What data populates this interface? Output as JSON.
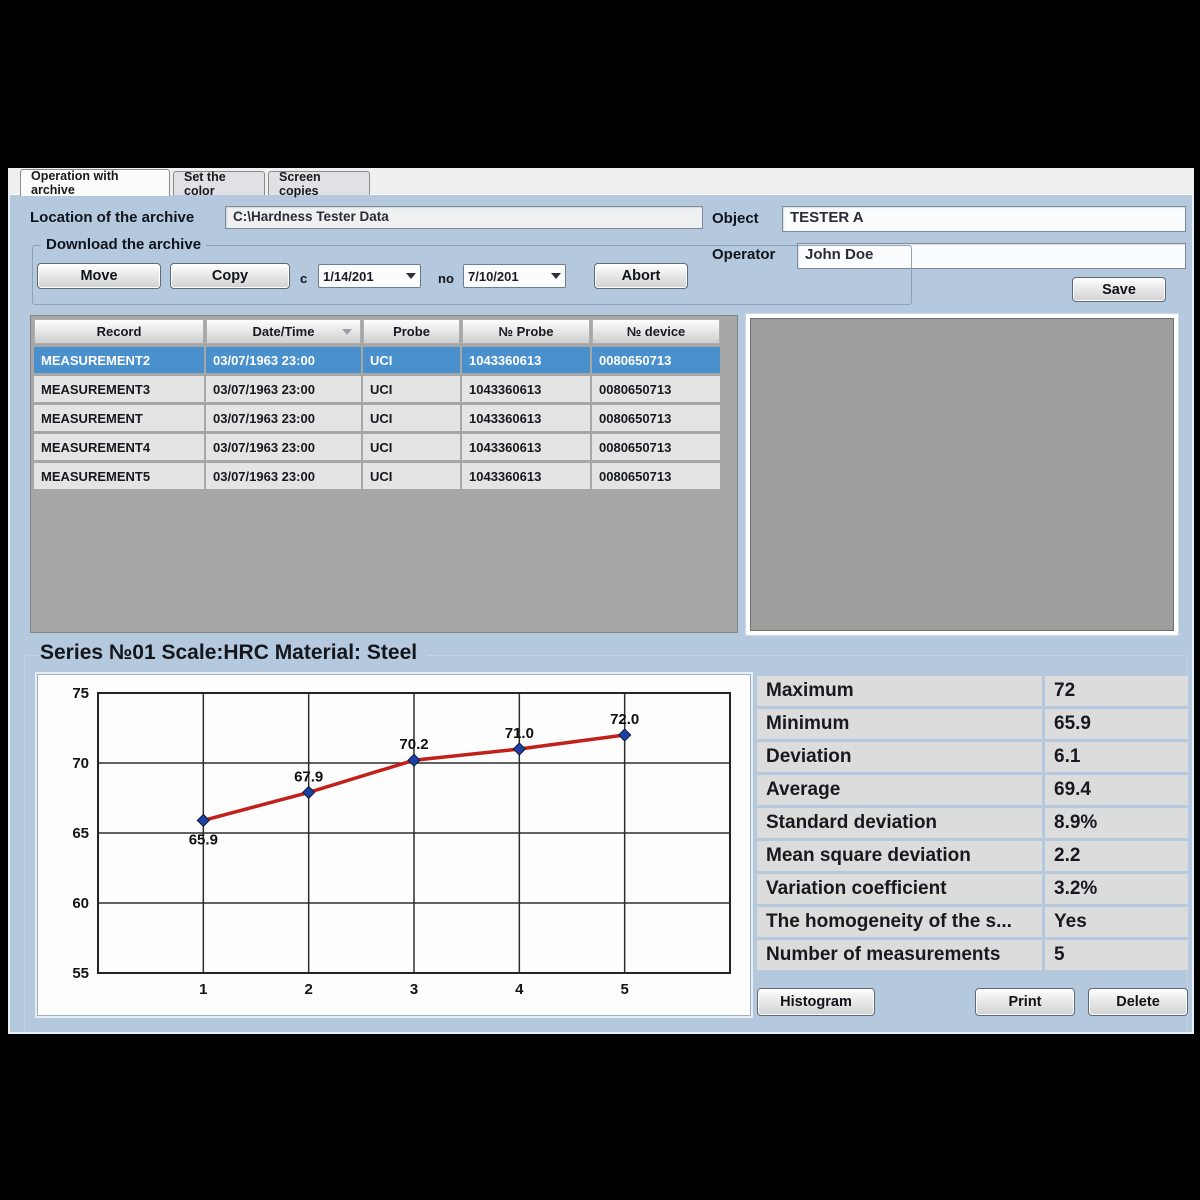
{
  "tabs": [
    {
      "label": "Operation with archive",
      "active": true
    },
    {
      "label": "Set the color",
      "active": false
    },
    {
      "label": "Screen copies",
      "active": false
    }
  ],
  "archive": {
    "location_label": "Location of the archive",
    "location_value": "C:\\Hardness Tester Data",
    "group_label": "Download the archive",
    "move_label": "Move",
    "copy_label": "Copy",
    "from_label": "c",
    "date_from": "1/14/201",
    "to_label": "no",
    "date_to": "7/10/201",
    "abort_label": "Abort"
  },
  "identity": {
    "object_label": "Object",
    "object_value": "TESTER A",
    "operator_label": "Operator",
    "operator_value": "John Doe",
    "save_label": "Save"
  },
  "records_table": {
    "columns": [
      "Record",
      "Date/Time",
      "Probe",
      "№ Probe",
      "№ device"
    ],
    "selected_index": 0,
    "rows": [
      [
        "MEASUREMENT2",
        "03/07/1963 23:00",
        "UCI",
        "1043360613",
        "0080650713"
      ],
      [
        "MEASUREMENT3",
        "03/07/1963 23:00",
        "UCI",
        "1043360613",
        "0080650713"
      ],
      [
        "MEASUREMENT",
        "03/07/1963 23:00",
        "UCI",
        "1043360613",
        "0080650713"
      ],
      [
        "MEASUREMENT4",
        "03/07/1963 23:00",
        "UCI",
        "1043360613",
        "0080650713"
      ],
      [
        "MEASUREMENT5",
        "03/07/1963 23:00",
        "UCI",
        "1043360613",
        "0080650713"
      ]
    ]
  },
  "series": {
    "title": "Series №01 Scale:HRC Material: Steel"
  },
  "chart_data": {
    "type": "line",
    "x": [
      1,
      2,
      3,
      4,
      5
    ],
    "values": [
      65.9,
      67.9,
      70.2,
      71.0,
      72.0
    ],
    "point_labels": [
      "65.9",
      "67.9",
      "70.2",
      "71.0",
      "72.0"
    ],
    "xlim": [
      0,
      6
    ],
    "ylim": [
      55,
      75
    ],
    "xticks": [
      1,
      2,
      3,
      4,
      5
    ],
    "yticks": [
      55,
      60,
      65,
      70,
      75
    ],
    "grid": true,
    "title": "",
    "xlabel": "",
    "ylabel": "",
    "line_color": "#c2201a",
    "marker_color": "#1d3fa6"
  },
  "stats": {
    "rows": [
      {
        "label": "Maximum",
        "value": "72"
      },
      {
        "label": "Minimum",
        "value": "65.9"
      },
      {
        "label": "Deviation",
        "value": "6.1"
      },
      {
        "label": "Average",
        "value": "69.4"
      },
      {
        "label": "Standard deviation",
        "value": "8.9%"
      },
      {
        "label": "Mean square deviation",
        "value": "2.2"
      },
      {
        "label": "Variation coefficient",
        "value": "3.2%"
      },
      {
        "label": "The homogeneity of the s...",
        "value": "Yes"
      },
      {
        "label": "Number of measurements",
        "value": "5"
      }
    ]
  },
  "actions": {
    "histogram_label": "Histogram",
    "print_label": "Print",
    "delete_label": "Delete"
  },
  "colors": {
    "selected_row": "#4a90cd",
    "window_bg": "#b4c9de",
    "line": "#c2201a",
    "marker": "#1d3fa6"
  }
}
